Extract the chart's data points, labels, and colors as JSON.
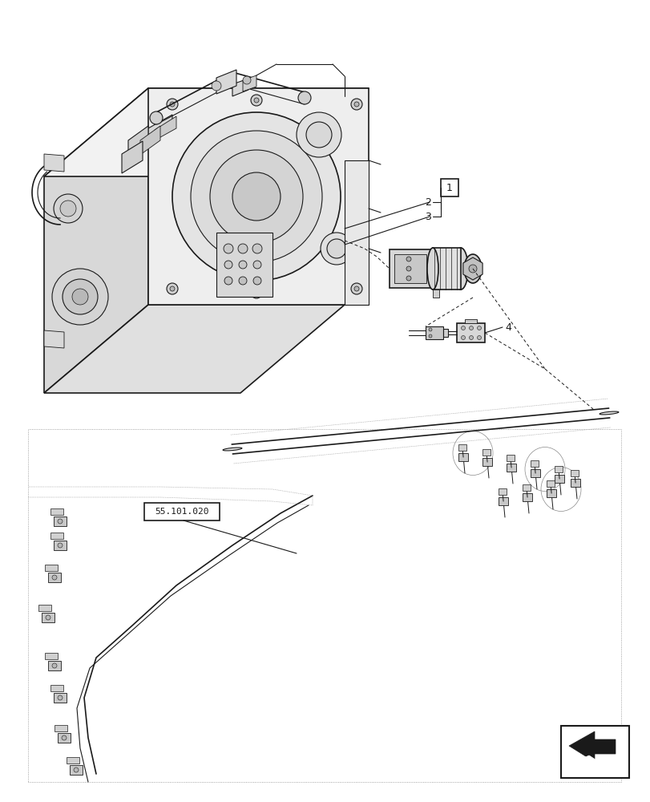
{
  "background_color": "#ffffff",
  "line_color": "#1a1a1a",
  "gray1": "#e8e8e8",
  "gray2": "#d0d0d0",
  "gray3": "#b8b8b8",
  "gray4": "#909090",
  "dark": "#2a2a2a",
  "label_1": "1",
  "label_2": "2",
  "label_3": "3",
  "label_4": "4",
  "ref_label": "55.101.020",
  "fig_width": 8.12,
  "fig_height": 10.0,
  "dpi": 100
}
